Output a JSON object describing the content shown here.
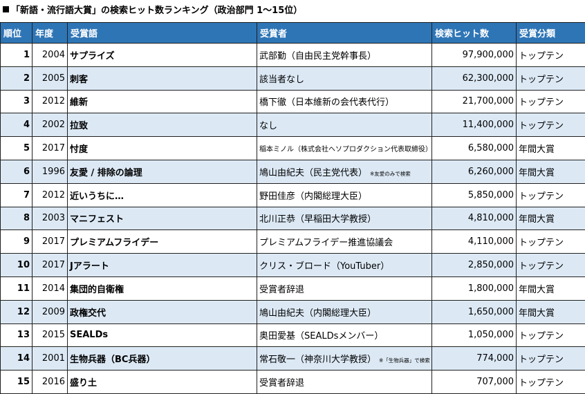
{
  "title": "「新語・流行語大賞」の検索ヒット数ランキング（政治部門 1～15位）",
  "headers": {
    "rank": "順位",
    "year": "年度",
    "word": "受賞語",
    "recipient": "受賞者",
    "hits": "検索ヒット数",
    "category": "受賞分類"
  },
  "rows": [
    {
      "rank": "1",
      "year": "2004",
      "word": "サプライズ",
      "recipient": "武部勤（自由民主党幹事長）",
      "note": "",
      "hits": "97,900,000",
      "category": "トップテン"
    },
    {
      "rank": "2",
      "year": "2005",
      "word": "刺客",
      "recipient": "該当者なし",
      "note": "",
      "hits": "62,300,000",
      "category": "トップテン"
    },
    {
      "rank": "3",
      "year": "2012",
      "word": "維新",
      "recipient": "橋下徹（日本維新の会代表代行）",
      "note": "",
      "hits": "21,700,000",
      "category": "トップテン"
    },
    {
      "rank": "4",
      "year": "2002",
      "word": "拉致",
      "recipient": "なし",
      "note": "",
      "hits": "11,400,000",
      "category": "トップテン"
    },
    {
      "rank": "5",
      "year": "2017",
      "word": "忖度",
      "recipient": "稲本ミノル（株式会社ヘソプロダクション代表取締役）",
      "note": "",
      "hits": "6,580,000",
      "category": "年間大賞"
    },
    {
      "rank": "6",
      "year": "1996",
      "word": "友愛 / 排除の論理",
      "recipient": "鳩山由紀夫（民主党代表）",
      "note": "※友愛のみで検索",
      "hits": "6,260,000",
      "category": "年間大賞"
    },
    {
      "rank": "7",
      "year": "2012",
      "word": "近いうちに…",
      "recipient": "野田佳彦（内閣総理大臣）",
      "note": "",
      "hits": "5,850,000",
      "category": "トップテン"
    },
    {
      "rank": "8",
      "year": "2003",
      "word": "マニフェスト",
      "recipient": "北川正恭（早稲田大学教授）",
      "note": "",
      "hits": "4,810,000",
      "category": "年間大賞"
    },
    {
      "rank": "9",
      "year": "2017",
      "word": "プレミアムフライデー",
      "recipient": "プレミアムフライデー推進協議会",
      "note": "",
      "hits": "4,110,000",
      "category": "トップテン"
    },
    {
      "rank": "10",
      "year": "2017",
      "word": "Jアラート",
      "recipient": "クリス・ブロード（YouTuber）",
      "note": "",
      "hits": "2,850,000",
      "category": "トップテン"
    },
    {
      "rank": "11",
      "year": "2014",
      "word": "集団的自衛権",
      "recipient": "受賞者辞退",
      "note": "",
      "hits": "1,800,000",
      "category": "年間大賞"
    },
    {
      "rank": "12",
      "year": "2009",
      "word": "政権交代",
      "recipient": "鳩山由紀夫（内閣総理大臣）",
      "note": "",
      "hits": "1,650,000",
      "category": "年間大賞"
    },
    {
      "rank": "13",
      "year": "2015",
      "word": "SEALDs",
      "recipient": "奥田愛基（SEALDsメンバー）",
      "note": "",
      "hits": "1,050,000",
      "category": "トップテン"
    },
    {
      "rank": "14",
      "year": "2001",
      "word": "生物兵器（BC兵器）",
      "recipient": "常石敬一（神奈川大学教授）",
      "note": "※「生物兵器」で検索",
      "hits": "774,000",
      "category": "トップテン"
    },
    {
      "rank": "15",
      "year": "2016",
      "word": "盛り土",
      "recipient": "受賞者辞退",
      "note": "",
      "hits": "707,000",
      "category": "トップテン"
    }
  ]
}
